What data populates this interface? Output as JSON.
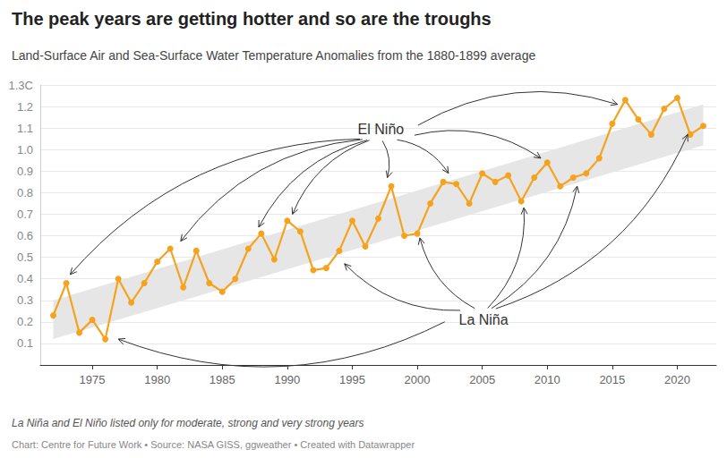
{
  "chart_data": {
    "type": "line",
    "title": "The peak years are getting hotter and so are the troughs",
    "subtitle": "Land-Surface Air and Sea-Surface Water Temperature Anomalies from the 1880-1899 average",
    "x": [
      1972,
      1973,
      1974,
      1975,
      1976,
      1977,
      1978,
      1979,
      1980,
      1981,
      1982,
      1983,
      1984,
      1985,
      1986,
      1987,
      1988,
      1989,
      1990,
      1991,
      1992,
      1993,
      1994,
      1995,
      1996,
      1997,
      1998,
      1999,
      2000,
      2001,
      2002,
      2003,
      2004,
      2005,
      2006,
      2007,
      2008,
      2009,
      2010,
      2011,
      2012,
      2013,
      2014,
      2015,
      2016,
      2017,
      2018,
      2019,
      2020,
      2021,
      2022
    ],
    "values": [
      0.23,
      0.38,
      0.15,
      0.21,
      0.12,
      0.4,
      0.29,
      0.38,
      0.48,
      0.54,
      0.36,
      0.53,
      0.38,
      0.34,
      0.4,
      0.54,
      0.61,
      0.49,
      0.67,
      0.62,
      0.44,
      0.45,
      0.53,
      0.67,
      0.55,
      0.68,
      0.83,
      0.6,
      0.61,
      0.75,
      0.85,
      0.84,
      0.75,
      0.89,
      0.85,
      0.88,
      0.76,
      0.87,
      0.94,
      0.83,
      0.87,
      0.89,
      0.96,
      1.12,
      1.23,
      1.14,
      1.07,
      1.19,
      1.24,
      1.07,
      1.11
    ],
    "color": "#f5a31f",
    "marker": "circle",
    "xlim": [
      1971,
      2023
    ],
    "xticks": [
      1975,
      1980,
      1985,
      1990,
      1995,
      2000,
      2005,
      2010,
      2015,
      2020
    ],
    "ylim": [
      0,
      1.3
    ],
    "yticks": [
      0.1,
      0.2,
      0.3,
      0.4,
      0.5,
      0.6,
      0.7,
      0.8,
      0.9,
      {
        "value": 1,
        "label": "1.0"
      },
      1.1,
      1.2,
      {
        "value": 1.3,
        "label": "1.3C"
      }
    ],
    "grid": true,
    "band": {
      "x": [
        1972,
        2022
      ],
      "lower": [
        0.12,
        1.02
      ],
      "upper": [
        0.3,
        1.21
      ],
      "color": "#e6e6e6"
    },
    "annotations": [
      {
        "text": "El Niño",
        "at": [
          1997.2,
          1.095
        ],
        "points_to": [
          [
            1973.3,
            0.42
          ],
          [
            1981.8,
            0.575
          ],
          [
            1987.8,
            0.64
          ],
          [
            1990.4,
            0.7
          ],
          [
            1997.7,
            0.87
          ],
          [
            2002.4,
            0.89
          ],
          [
            2009.5,
            0.96
          ],
          [
            2015.4,
            1.21
          ]
        ]
      },
      {
        "text": "La Niña",
        "at": [
          2005.1,
          0.21
        ],
        "points_to": [
          [
            1977.0,
            0.12
          ],
          [
            1994.4,
            0.47
          ],
          [
            2000.2,
            0.59
          ],
          [
            2008.2,
            0.73
          ],
          [
            2012.3,
            0.83
          ],
          [
            2020.8,
            1.07
          ]
        ]
      }
    ],
    "notes": [
      "La Niña and El Niño listed only for moderate, strong and very strong years",
      "Chart: Centre for Future Work • Source: NASA GISS, ggweather • Created with Datawrapper"
    ]
  }
}
